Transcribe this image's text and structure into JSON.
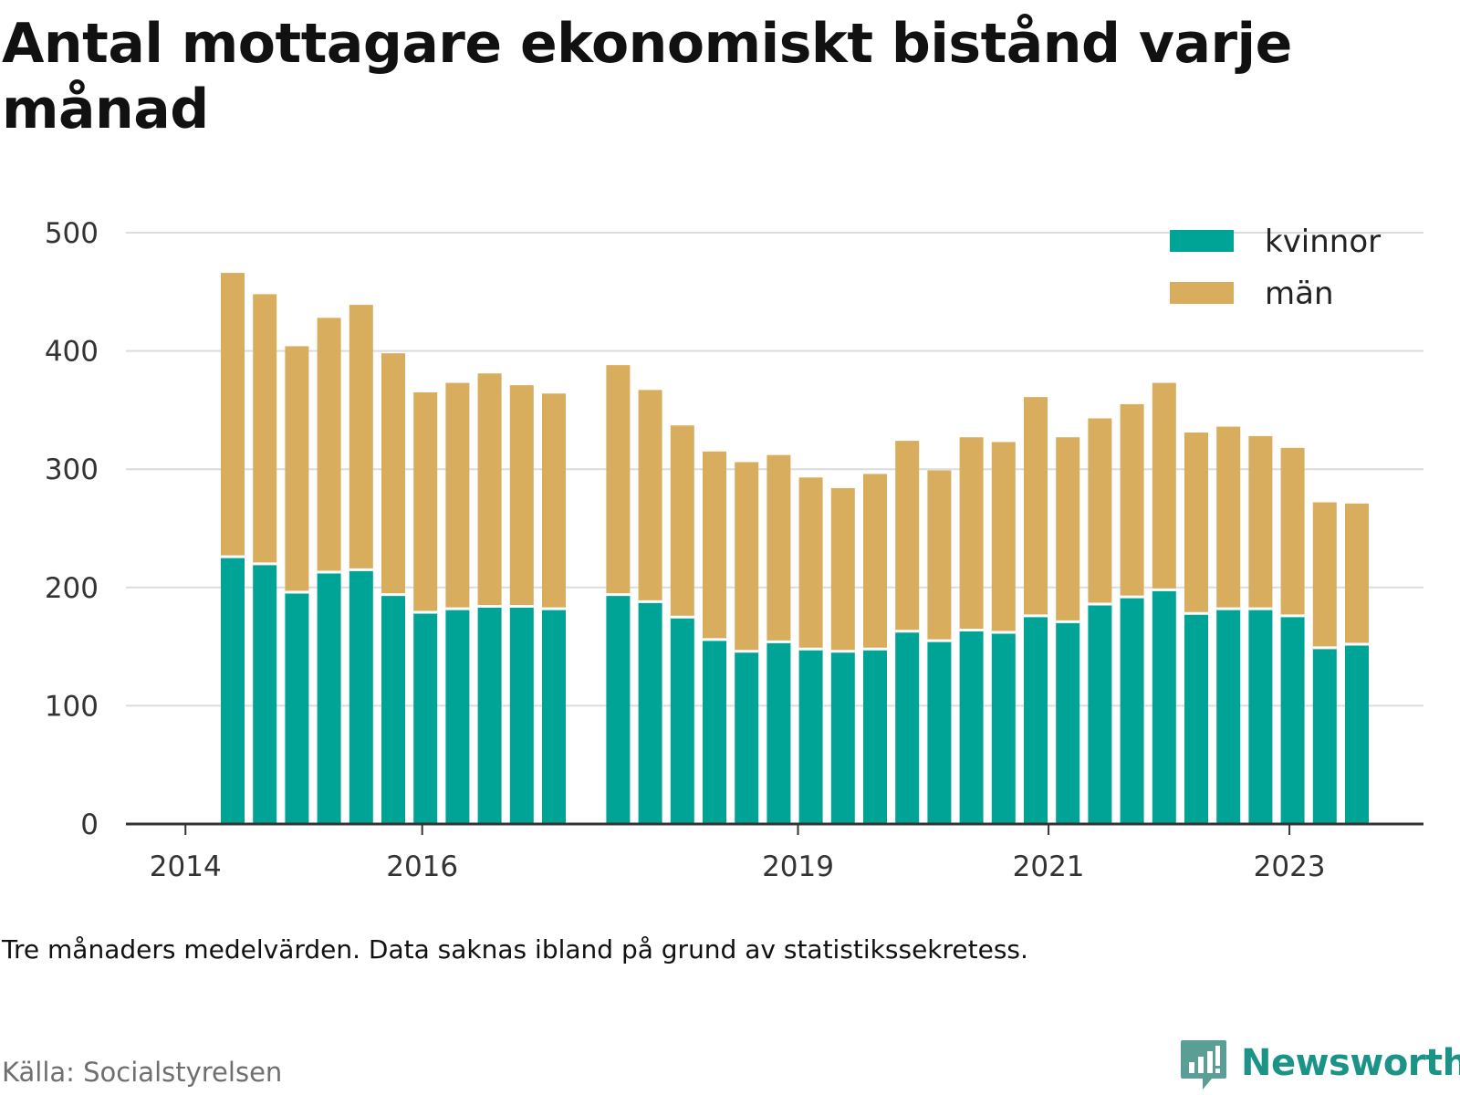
{
  "title": "Antal mottagare ekonomiskt bistånd varje månad",
  "note": "Tre månaders medelvärden. Data saknas ibland på grund av statistikssekretess.",
  "source": "Källa: Socialstyrelsen",
  "brand": "Newsworthy",
  "colors": {
    "kvinnor": "#00a497",
    "man": "#d9ad5e",
    "grid": "#dcdcdc",
    "axis": "#333333",
    "brand": "#1b9487"
  },
  "legend": [
    {
      "name": "kvinnor",
      "color": "#00a497"
    },
    {
      "name": "män",
      "color": "#d9ad5e"
    }
  ],
  "chart_data": {
    "type": "bar",
    "stacked": true,
    "x_ticks": [
      "2014",
      "2016",
      "2019",
      "2021",
      "2023"
    ],
    "y_ticks": [
      0,
      100,
      200,
      300,
      400,
      500
    ],
    "ylim": [
      0,
      500
    ],
    "grid": true,
    "legend_position": "top-right",
    "bars": [
      {
        "slot": 1,
        "kvinnor": 226,
        "man": 240
      },
      {
        "slot": 2,
        "kvinnor": 220,
        "man": 228
      },
      {
        "slot": 3,
        "kvinnor": 196,
        "man": 208
      },
      {
        "slot": 4,
        "kvinnor": 213,
        "man": 215
      },
      {
        "slot": 5,
        "kvinnor": 215,
        "man": 224
      },
      {
        "slot": 6,
        "kvinnor": 194,
        "man": 204
      },
      {
        "slot": 7,
        "kvinnor": 179,
        "man": 186
      },
      {
        "slot": 8,
        "kvinnor": 182,
        "man": 191
      },
      {
        "slot": 9,
        "kvinnor": 184,
        "man": 197
      },
      {
        "slot": 10,
        "kvinnor": 184,
        "man": 187
      },
      {
        "slot": 11,
        "kvinnor": 182,
        "man": 182
      },
      {
        "slot": 13,
        "kvinnor": 194,
        "man": 194
      },
      {
        "slot": 14,
        "kvinnor": 188,
        "man": 179
      },
      {
        "slot": 15,
        "kvinnor": 175,
        "man": 162
      },
      {
        "slot": 16,
        "kvinnor": 156,
        "man": 159
      },
      {
        "slot": 17,
        "kvinnor": 146,
        "man": 160
      },
      {
        "slot": 18,
        "kvinnor": 154,
        "man": 158
      },
      {
        "slot": 19,
        "kvinnor": 148,
        "man": 145
      },
      {
        "slot": 20,
        "kvinnor": 146,
        "man": 138
      },
      {
        "slot": 21,
        "kvinnor": 148,
        "man": 148
      },
      {
        "slot": 22,
        "kvinnor": 163,
        "man": 161
      },
      {
        "slot": 23,
        "kvinnor": 155,
        "man": 144
      },
      {
        "slot": 24,
        "kvinnor": 164,
        "man": 163
      },
      {
        "slot": 25,
        "kvinnor": 162,
        "man": 161
      },
      {
        "slot": 26,
        "kvinnor": 176,
        "man": 185
      },
      {
        "slot": 27,
        "kvinnor": 171,
        "man": 156
      },
      {
        "slot": 28,
        "kvinnor": 186,
        "man": 157
      },
      {
        "slot": 29,
        "kvinnor": 192,
        "man": 163
      },
      {
        "slot": 30,
        "kvinnor": 198,
        "man": 175
      },
      {
        "slot": 31,
        "kvinnor": 178,
        "man": 153
      },
      {
        "slot": 32,
        "kvinnor": 182,
        "man": 154
      },
      {
        "slot": 33,
        "kvinnor": 182,
        "man": 146
      },
      {
        "slot": 34,
        "kvinnor": 176,
        "man": 142
      },
      {
        "slot": 35,
        "kvinnor": 149,
        "man": 123
      },
      {
        "slot": 36,
        "kvinnor": 152,
        "man": 119
      }
    ]
  }
}
